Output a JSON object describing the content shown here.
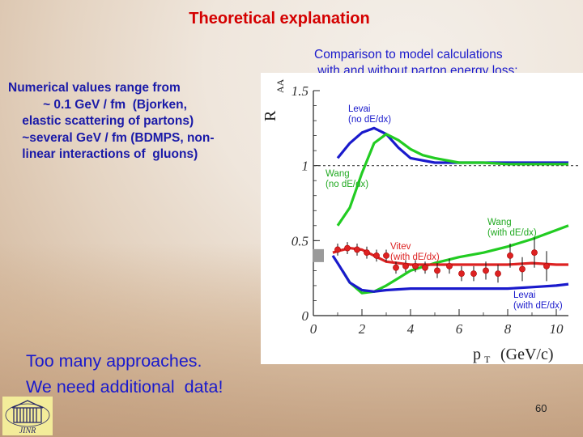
{
  "slide": {
    "title": "Theoretical explanation",
    "subtitle": "Comparison to model calculations\n with and without parton energy loss:",
    "numerical_text": "Numerical values range from\n          ~ 0.1 GeV / fm  (Bjorken,\n    elastic scattering of partons)\n    ~several GeV / fm (BDMPS, non-\n    linear interactions of  gluons)",
    "bottom_text": "Too many approaches.\nWe need additional  data!",
    "page_number": "60",
    "logo_text": "JINR"
  },
  "colors": {
    "title": "#d40000",
    "text": "#1a1acc",
    "blue_curve": "#1a1acc",
    "green_curve": "#22cc22",
    "red_curve": "#dd2222"
  },
  "chart_data": {
    "type": "line",
    "ylabel": "R",
    "ylabel_sub": "AA",
    "xlabel": "p",
    "xlabel_sub": "T",
    "xlabel_unit": "(GeV/c)",
    "xlim": [
      0,
      10.5
    ],
    "ylim": [
      0,
      1.5
    ],
    "x_ticks": [
      "0",
      "2",
      "4",
      "6",
      "8",
      "10"
    ],
    "y_ticks": [
      "0",
      "0.5",
      "1",
      "1.5"
    ],
    "reference_line": 1,
    "series": [
      {
        "name": "Levai\n(no dE/dx)",
        "color": "#1a1acc",
        "x": [
          1.0,
          1.5,
          2.0,
          2.5,
          3.0,
          3.5,
          4.0,
          5.0,
          6.0,
          7.0,
          8.0,
          9.0,
          10.0,
          10.5
        ],
        "y": [
          1.05,
          1.15,
          1.22,
          1.25,
          1.21,
          1.12,
          1.05,
          1.02,
          1.02,
          1.02,
          1.02,
          1.02,
          1.02,
          1.02
        ]
      },
      {
        "name": "Wang\n(no dE/dx)",
        "color": "#22cc22",
        "x": [
          1.0,
          1.5,
          2.0,
          2.5,
          3.0,
          3.5,
          4.0,
          4.5,
          5.0,
          6.0,
          7.0,
          8.0,
          9.0,
          10.0,
          10.5
        ],
        "y": [
          0.6,
          0.72,
          0.95,
          1.15,
          1.21,
          1.17,
          1.11,
          1.07,
          1.05,
          1.02,
          1.02,
          1.01,
          1.01,
          1.01,
          1.01
        ]
      },
      {
        "name": "Wang\n(with dE/dx)",
        "color": "#22cc22",
        "x": [
          1.2,
          1.5,
          2.0,
          2.5,
          3.0,
          3.5,
          4.0,
          5.0,
          6.0,
          7.0,
          8.0,
          9.0,
          10.0,
          10.5
        ],
        "y": [
          0.3,
          0.22,
          0.15,
          0.16,
          0.2,
          0.25,
          0.3,
          0.35,
          0.39,
          0.42,
          0.46,
          0.51,
          0.57,
          0.6
        ]
      },
      {
        "name": "Vitev\n(with dE/dx)",
        "color": "#dd2222",
        "x": [
          0.8,
          1.0,
          1.5,
          2.0,
          2.5,
          3.0,
          4.0,
          5.0,
          6.0,
          7.0,
          8.0,
          9.0,
          10.0,
          10.5
        ],
        "y": [
          0.42,
          0.43,
          0.45,
          0.44,
          0.4,
          0.36,
          0.34,
          0.34,
          0.34,
          0.34,
          0.34,
          0.35,
          0.34,
          0.34
        ]
      },
      {
        "name": "Levai\n(with dE/dx)",
        "color": "#1a1acc",
        "x": [
          0.8,
          1.0,
          1.5,
          2.0,
          2.5,
          3.0,
          4.0,
          5.0,
          6.0,
          7.0,
          8.0,
          9.0,
          10.0,
          10.5
        ],
        "y": [
          0.4,
          0.35,
          0.22,
          0.17,
          0.16,
          0.17,
          0.18,
          0.18,
          0.18,
          0.18,
          0.18,
          0.19,
          0.2,
          0.21
        ]
      }
    ],
    "data_points": {
      "x": [
        1.0,
        1.4,
        1.8,
        2.2,
        2.6,
        3.0,
        3.4,
        3.8,
        4.2,
        4.6,
        5.1,
        5.6,
        6.1,
        6.6,
        7.1,
        7.6,
        8.1,
        8.6,
        9.1,
        9.6
      ],
      "y": [
        0.44,
        0.45,
        0.44,
        0.42,
        0.4,
        0.4,
        0.32,
        0.33,
        0.33,
        0.32,
        0.3,
        0.33,
        0.28,
        0.28,
        0.3,
        0.28,
        0.4,
        0.31,
        0.42,
        0.33
      ],
      "yerr": [
        0.04,
        0.04,
        0.04,
        0.04,
        0.04,
        0.04,
        0.04,
        0.04,
        0.04,
        0.04,
        0.05,
        0.05,
        0.05,
        0.05,
        0.06,
        0.06,
        0.08,
        0.08,
        0.1,
        0.1
      ],
      "color": "#dd2222"
    },
    "systematic_box": {
      "x": 0.2,
      "y": 0.4,
      "color": "#9a9a9a"
    }
  }
}
